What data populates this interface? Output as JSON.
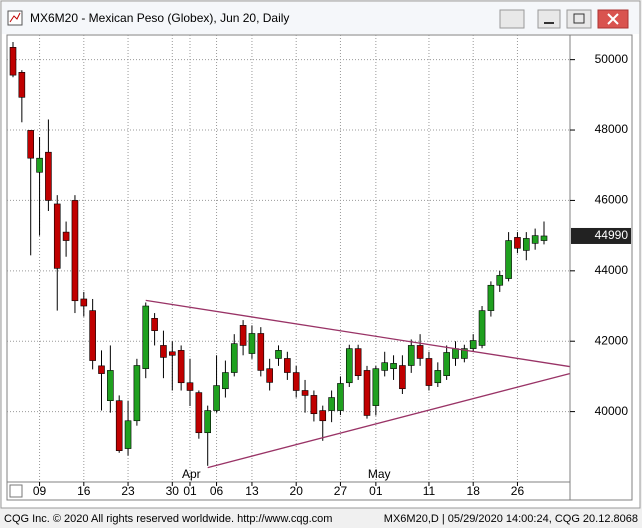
{
  "chart_data": {
    "type": "candlestick",
    "title": "MX6M20 - Mexican Peso (Globex), Jun 20, Daily",
    "categories": [
      null,
      null,
      null,
      "09",
      null,
      null,
      null,
      null,
      "16",
      null,
      null,
      null,
      null,
      "23",
      null,
      null,
      null,
      null,
      "30",
      null,
      "01",
      null,
      null,
      "06",
      null,
      null,
      null,
      "13",
      null,
      null,
      null,
      null,
      "20",
      null,
      null,
      null,
      null,
      "27",
      null,
      null,
      null,
      "01",
      null,
      null,
      null,
      null,
      null,
      "11",
      null,
      null,
      null,
      null,
      "18",
      null,
      null,
      null,
      null,
      "26",
      null,
      null,
      null
    ],
    "months": [
      null,
      null,
      null,
      null,
      null,
      null,
      null,
      null,
      null,
      null,
      null,
      null,
      null,
      null,
      null,
      null,
      null,
      null,
      null,
      null,
      "Apr",
      null,
      null,
      null,
      null,
      null,
      null,
      null,
      null,
      null,
      null,
      null,
      null,
      null,
      null,
      null,
      null,
      null,
      null,
      null,
      null,
      "May",
      null,
      null,
      null,
      null,
      null,
      null,
      null,
      null,
      null,
      null,
      null,
      null,
      null,
      null,
      null,
      null,
      null,
      null,
      null
    ],
    "open": [
      50350,
      49640,
      47990,
      46800,
      47370,
      45900,
      45100,
      46000,
      43200,
      42870,
      41300,
      40310,
      40310,
      38950,
      39740,
      41220,
      42650,
      41880,
      41700,
      41740,
      40820,
      40540,
      39400,
      40030,
      40650,
      41110,
      42450,
      41650,
      42220,
      41220,
      41510,
      41510,
      41110,
      40600,
      40460,
      40030,
      40030,
      40030,
      40820,
      41790,
      41170,
      40170,
      41170,
      41220,
      41310,
      41310,
      41880,
      41510,
      40820,
      41020,
      41510,
      41510,
      41790,
      41880,
      42870,
      43590,
      43780,
      44950,
      44580,
      44780,
      44860
    ],
    "high": [
      50500,
      49700,
      48000,
      47800,
      48300,
      46150,
      45400,
      46150,
      43400,
      43200,
      41740,
      41880,
      40460,
      40310,
      41500,
      43100,
      42800,
      42300,
      42000,
      41880,
      41500,
      40600,
      40170,
      41600,
      41450,
      42200,
      42600,
      42450,
      42400,
      41500,
      41880,
      41700,
      41300,
      40900,
      40600,
      40170,
      40600,
      41000,
      41900,
      41900,
      41300,
      41300,
      41700,
      41600,
      41600,
      42050,
      42200,
      41700,
      41400,
      41880,
      42000,
      41900,
      42200,
      43000,
      43700,
      44000,
      45100,
      45100,
      45100,
      45200,
      45400
    ],
    "low": [
      49500,
      48220,
      44440,
      45000,
      45700,
      42870,
      44400,
      42800,
      42700,
      41200,
      40030,
      39970,
      38830,
      38750,
      39600,
      40950,
      41880,
      40950,
      40600,
      40600,
      40160,
      39230,
      38460,
      39970,
      40400,
      41000,
      41600,
      41500,
      41000,
      40600,
      41300,
      40900,
      40400,
      39970,
      39720,
      39170,
      39700,
      39900,
      40700,
      40900,
      39800,
      39890,
      41000,
      40900,
      40500,
      41100,
      41300,
      40600,
      40700,
      40900,
      41300,
      41400,
      41700,
      41800,
      42700,
      43400,
      43700,
      44500,
      44300,
      44600,
      44750
    ],
    "close": [
      49560,
      48930,
      47200,
      47200,
      46000,
      44070,
      44860,
      43150,
      43000,
      41450,
      41080,
      41170,
      38890,
      39740,
      41310,
      43000,
      42300,
      41540,
      41600,
      40820,
      40600,
      39400,
      40030,
      40740,
      41110,
      41930,
      41880,
      42220,
      41170,
      40830,
      41740,
      41110,
      40600,
      40460,
      39940,
      39740,
      40400,
      40800,
      41790,
      41020,
      39890,
      41220,
      41390,
      41370,
      40650,
      41880,
      41510,
      40740,
      41170,
      41680,
      41790,
      41790,
      42020,
      42870,
      43590,
      43870,
      44860,
      44640,
      44920,
      45000,
      44990
    ],
    "up_color": "#1fa01f",
    "down_color": "#c00000",
    "ylim": [
      38000,
      50700
    ],
    "yticks": [
      40000,
      42000,
      44000,
      46000,
      48000,
      50000
    ],
    "grid": true,
    "last_price": 44990,
    "trendlines": [
      {
        "from": [
          15,
          43160
        ],
        "to": [
          62.9,
          41280
        ]
      },
      {
        "from": [
          22,
          38410
        ],
        "to": [
          62.9,
          41080
        ]
      }
    ],
    "trendline_color": "#993366"
  },
  "footer": {
    "left": "CQG Inc. © 2020 All rights reserved worldwide. http://www.cqg.com",
    "right": "MX6M20,D | 05/29/2020 14:00:24, CQG 20.12.8068"
  }
}
